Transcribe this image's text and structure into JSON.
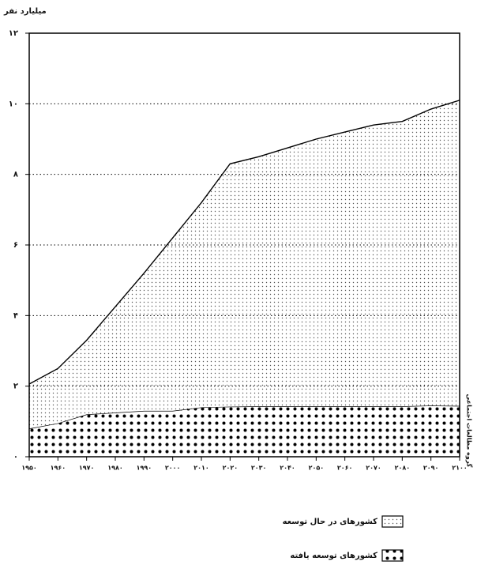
{
  "chart_data": {
    "type": "stacked-area",
    "ylabel": "میلیارد نفر",
    "source": "گروه مطالعات اجتماعی",
    "x": [
      1950,
      1960,
      1970,
      1980,
      1990,
      2000,
      2010,
      2020,
      2030,
      2040,
      2050,
      2060,
      2070,
      2080,
      2090,
      2100
    ],
    "xlim": [
      1950,
      2100
    ],
    "xticks": [
      {
        "value": 1950,
        "label": "۱۹۵۰"
      },
      {
        "value": 1960,
        "label": "۱۹۶۰"
      },
      {
        "value": 1970,
        "label": "۱۹۷۰"
      },
      {
        "value": 1980,
        "label": "۱۹۸۰"
      },
      {
        "value": 1990,
        "label": "۱۹۹۰"
      },
      {
        "value": 2000,
        "label": "۲۰۰۰"
      },
      {
        "value": 2010,
        "label": "۲۰۱۰"
      },
      {
        "value": 2020,
        "label": "۲۰۲۰"
      },
      {
        "value": 2030,
        "label": "۲۰۳۰"
      },
      {
        "value": 2040,
        "label": "۲۰۴۰"
      },
      {
        "value": 2050,
        "label": "۲۰۵۰"
      },
      {
        "value": 2060,
        "label": "۲۰۶۰"
      },
      {
        "value": 2070,
        "label": "۲۰۷۰"
      },
      {
        "value": 2080,
        "label": "۲۰۸۰"
      },
      {
        "value": 2090,
        "label": "۲۰۹۰"
      },
      {
        "value": 2100,
        "label": "۲۱۰۰"
      }
    ],
    "ylim": [
      0,
      12
    ],
    "yticks": [
      {
        "value": 0,
        "label": "۰"
      },
      {
        "value": 2,
        "label": "۲"
      },
      {
        "value": 4,
        "label": "۴"
      },
      {
        "value": 6,
        "label": "۶"
      },
      {
        "value": 8,
        "label": "۸"
      },
      {
        "value": 10,
        "label": "۱۰"
      },
      {
        "value": 12,
        "label": "۱۲"
      }
    ],
    "grid": true,
    "series": [
      {
        "name": "کشورهای توسعه یافته",
        "values": [
          0.8,
          0.95,
          1.2,
          1.25,
          1.3,
          1.3,
          1.4,
          1.42,
          1.43,
          1.43,
          1.43,
          1.43,
          1.43,
          1.43,
          1.45,
          1.44
        ]
      },
      {
        "name": "کشورهای در حال توسعه",
        "values": [
          1.26,
          1.55,
          2.1,
          3.0,
          3.9,
          4.9,
          5.8,
          6.88,
          7.07,
          7.32,
          7.57,
          7.77,
          7.97,
          8.07,
          8.4,
          8.66
        ]
      }
    ]
  }
}
